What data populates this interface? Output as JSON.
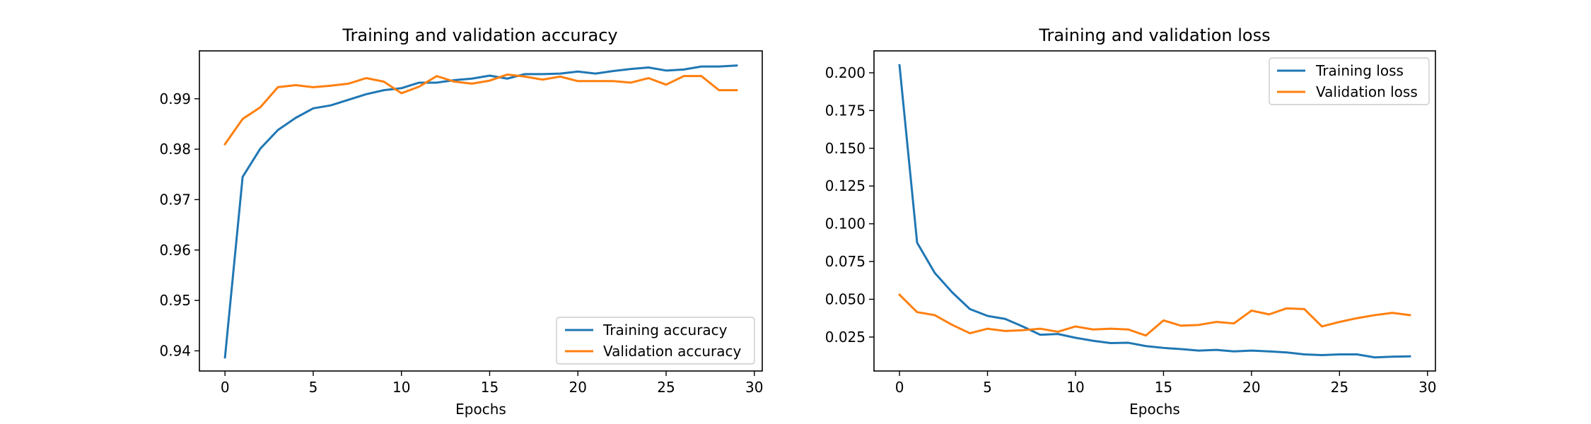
{
  "chart_data": [
    {
      "type": "line",
      "title": "Training and validation accuracy",
      "xlabel": "Epochs",
      "ylabel": "",
      "xlim": [
        -1.45,
        30.45
      ],
      "ylim": [
        0.936,
        0.9995
      ],
      "xticks": [
        0,
        5,
        10,
        15,
        20,
        25,
        30
      ],
      "yticks": [
        0.94,
        0.95,
        0.96,
        0.97,
        0.98,
        0.99
      ],
      "ytick_labels": [
        "0.94",
        "0.95",
        "0.96",
        "0.97",
        "0.98",
        "0.99"
      ],
      "legend_position": "lower-right",
      "grid": false,
      "x": [
        0,
        1,
        2,
        3,
        4,
        5,
        6,
        7,
        8,
        9,
        10,
        11,
        12,
        13,
        14,
        15,
        16,
        17,
        18,
        19,
        20,
        21,
        22,
        23,
        24,
        25,
        26,
        27,
        28,
        29
      ],
      "series": [
        {
          "name": "Training accuracy",
          "color": "#1f77b4",
          "values": [
            0.9387,
            0.9745,
            0.9801,
            0.9838,
            0.9862,
            0.9881,
            0.9887,
            0.9898,
            0.9909,
            0.9917,
            0.9921,
            0.9932,
            0.9932,
            0.9937,
            0.994,
            0.9946,
            0.994,
            0.9949,
            0.9949,
            0.995,
            0.9954,
            0.995,
            0.9955,
            0.9959,
            0.9962,
            0.9956,
            0.9958,
            0.9964,
            0.9964,
            0.9966
          ]
        },
        {
          "name": "Validation accuracy",
          "color": "#ff7f0e",
          "values": [
            0.981,
            0.986,
            0.9883,
            0.9923,
            0.9927,
            0.9923,
            0.9926,
            0.993,
            0.9941,
            0.9934,
            0.9911,
            0.9924,
            0.9945,
            0.9934,
            0.993,
            0.9936,
            0.9948,
            0.9944,
            0.9938,
            0.9944,
            0.9935,
            0.9935,
            0.9935,
            0.9932,
            0.9941,
            0.9928,
            0.9945,
            0.9945,
            0.9917,
            0.9917
          ]
        }
      ]
    },
    {
      "type": "line",
      "title": "Training and validation loss",
      "xlabel": "Epochs",
      "ylabel": "",
      "xlim": [
        -1.45,
        30.45
      ],
      "ylim": [
        0.0025,
        0.2145
      ],
      "xticks": [
        0,
        5,
        10,
        15,
        20,
        25,
        30
      ],
      "yticks": [
        0.025,
        0.05,
        0.075,
        0.1,
        0.125,
        0.15,
        0.175,
        0.2
      ],
      "ytick_labels": [
        "0.025",
        "0.050",
        "0.075",
        "0.100",
        "0.125",
        "0.150",
        "0.175",
        "0.200"
      ],
      "legend_position": "upper-right",
      "grid": false,
      "x": [
        0,
        1,
        2,
        3,
        4,
        5,
        6,
        7,
        8,
        9,
        10,
        11,
        12,
        13,
        14,
        15,
        16,
        17,
        18,
        19,
        20,
        21,
        22,
        23,
        24,
        25,
        26,
        27,
        28,
        29
      ],
      "series": [
        {
          "name": "Training loss",
          "color": "#1f77b4",
          "values": [
            0.205,
            0.0875,
            0.0675,
            0.0545,
            0.0435,
            0.039,
            0.037,
            0.032,
            0.0265,
            0.027,
            0.0245,
            0.0225,
            0.021,
            0.0212,
            0.019,
            0.0178,
            0.017,
            0.016,
            0.0165,
            0.0155,
            0.016,
            0.0155,
            0.0148,
            0.0135,
            0.013,
            0.0135,
            0.0135,
            0.0115,
            0.012,
            0.0122
          ]
        },
        {
          "name": "Validation loss",
          "color": "#ff7f0e",
          "values": [
            0.053,
            0.0415,
            0.0395,
            0.033,
            0.0275,
            0.0305,
            0.029,
            0.0295,
            0.0305,
            0.0285,
            0.032,
            0.03,
            0.0305,
            0.03,
            0.026,
            0.036,
            0.0325,
            0.033,
            0.035,
            0.034,
            0.0425,
            0.04,
            0.044,
            0.0435,
            0.032,
            0.035,
            0.0375,
            0.0395,
            0.041,
            0.0395
          ]
        }
      ]
    }
  ]
}
